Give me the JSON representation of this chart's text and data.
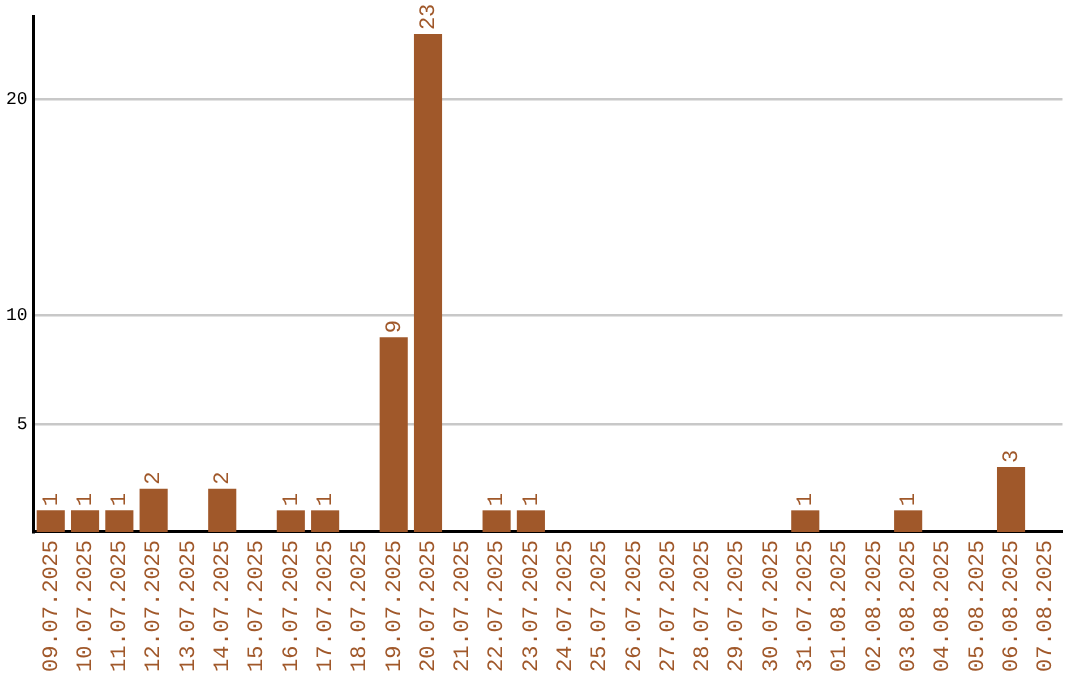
{
  "chart_data": {
    "type": "bar",
    "categories": [
      "09.07.2025",
      "10.07.2025",
      "11.07.2025",
      "12.07.2025",
      "13.07.2025",
      "14.07.2025",
      "15.07.2025",
      "16.07.2025",
      "17.07.2025",
      "18.07.2025",
      "19.07.2025",
      "20.07.2025",
      "21.07.2025",
      "22.07.2025",
      "23.07.2025",
      "24.07.2025",
      "25.07.2025",
      "26.07.2025",
      "27.07.2025",
      "28.07.2025",
      "29.07.2025",
      "30.07.2025",
      "31.07.2025",
      "01.08.2025",
      "02.08.2025",
      "03.08.2025",
      "04.08.2025",
      "05.08.2025",
      "06.08.2025",
      "07.08.2025"
    ],
    "values": [
      1,
      1,
      1,
      2,
      0,
      2,
      0,
      1,
      1,
      0,
      9,
      23,
      0,
      1,
      1,
      0,
      0,
      0,
      0,
      0,
      0,
      0,
      1,
      0,
      0,
      1,
      0,
      0,
      3,
      0
    ],
    "value_labels": [
      "1",
      "1",
      "1",
      "2",
      null,
      "2",
      null,
      "1",
      "1",
      null,
      "9",
      "23",
      null,
      "1",
      "1",
      null,
      null,
      null,
      null,
      null,
      null,
      null,
      "1",
      null,
      null,
      "1",
      null,
      null,
      "3",
      null
    ],
    "color": "#a0582a",
    "ylim": [
      0,
      23.8
    ],
    "yticks": [
      5,
      10,
      20
    ],
    "grid": "y",
    "legend": false
  }
}
